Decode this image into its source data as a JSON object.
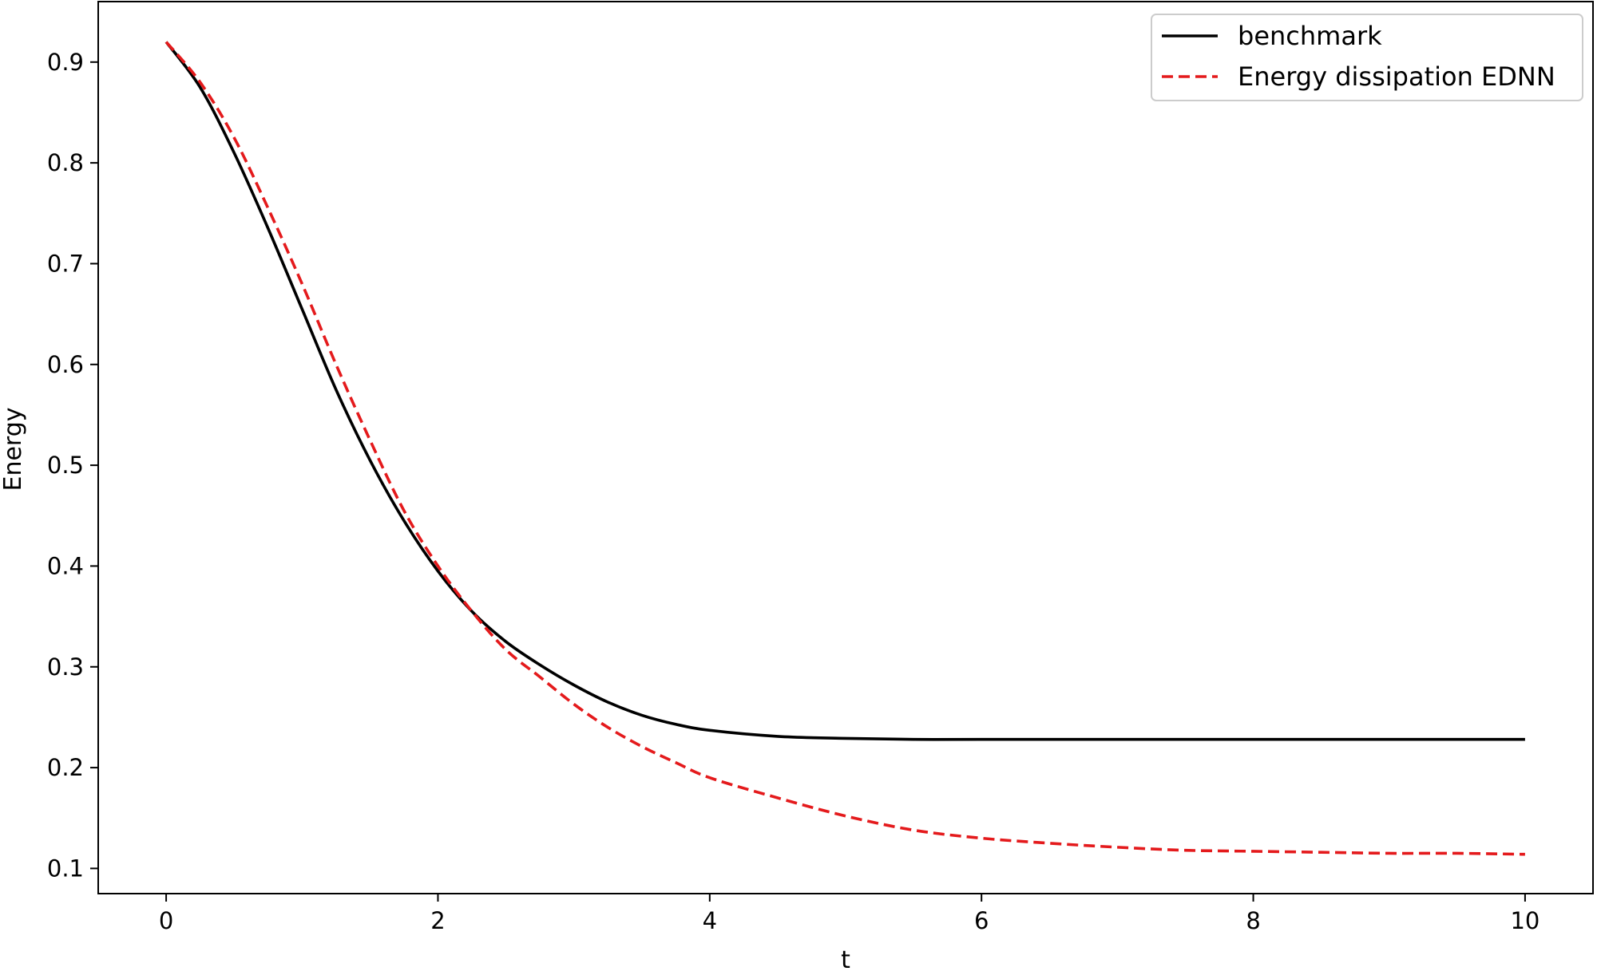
{
  "chart_data": {
    "type": "line",
    "title": "",
    "xlabel": "t",
    "ylabel": "Energy",
    "xlim": [
      -0.5,
      10.5
    ],
    "ylim": [
      0.075,
      0.96
    ],
    "xticks": [
      0,
      2,
      4,
      6,
      8,
      10
    ],
    "yticks": [
      0.1,
      0.2,
      0.3,
      0.4,
      0.5,
      0.6,
      0.7,
      0.8,
      0.9
    ],
    "xtick_labels": [
      "0",
      "2",
      "4",
      "6",
      "8",
      "10"
    ],
    "ytick_labels": [
      "0.1",
      "0.2",
      "0.3",
      "0.4",
      "0.5",
      "0.6",
      "0.7",
      "0.8",
      "0.9"
    ],
    "grid": false,
    "legend_position": "top-right",
    "series": [
      {
        "name": "benchmark",
        "color": "#000000",
        "style": "solid",
        "x": [
          0,
          0.25,
          0.5,
          0.75,
          1.0,
          1.25,
          1.5,
          1.75,
          2.0,
          2.25,
          2.5,
          2.75,
          3.0,
          3.25,
          3.5,
          3.75,
          4.0,
          4.5,
          5.0,
          5.5,
          6.0,
          7.0,
          8.0,
          9.0,
          10.0
        ],
        "y": [
          0.92,
          0.875,
          0.81,
          0.735,
          0.655,
          0.575,
          0.505,
          0.445,
          0.395,
          0.355,
          0.325,
          0.302,
          0.282,
          0.265,
          0.252,
          0.243,
          0.237,
          0.231,
          0.229,
          0.228,
          0.228,
          0.228,
          0.228,
          0.228,
          0.228
        ]
      },
      {
        "name": "Energy dissipation EDNN",
        "color": "#e41a1c",
        "style": "dashed",
        "x": [
          0,
          0.25,
          0.5,
          0.75,
          1.0,
          1.25,
          1.5,
          1.75,
          2.0,
          2.25,
          2.5,
          2.75,
          3.0,
          3.25,
          3.5,
          3.75,
          4.0,
          4.5,
          5.0,
          5.5,
          6.0,
          6.5,
          7.0,
          7.5,
          8.0,
          8.5,
          9.0,
          9.5,
          10.0
        ],
        "y": [
          0.92,
          0.88,
          0.825,
          0.755,
          0.68,
          0.6,
          0.525,
          0.455,
          0.4,
          0.355,
          0.317,
          0.29,
          0.263,
          0.24,
          0.221,
          0.205,
          0.19,
          0.17,
          0.152,
          0.138,
          0.13,
          0.125,
          0.121,
          0.118,
          0.117,
          0.116,
          0.115,
          0.115,
          0.114
        ]
      }
    ]
  }
}
